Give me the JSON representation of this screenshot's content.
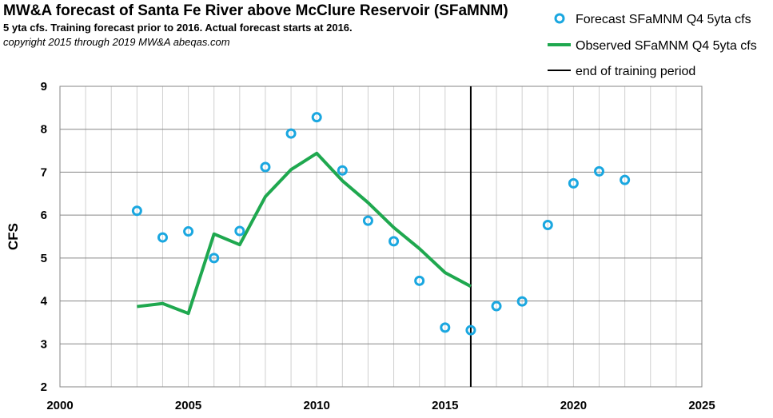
{
  "header": {
    "title": "MW&A forecast of Santa Fe River above McClure Reservoir (SFaMNM)",
    "subtitle": "5 yta cfs.  Training forecast prior to 2016.  Actual forecast starts at 2016.",
    "copyright": "copyright 2015 through 2019  MW&A  abeqas.com"
  },
  "chart_data": {
    "type": "line",
    "ylabel": "CFS",
    "xlabel": "",
    "xlim": [
      2000,
      2025
    ],
    "ylim": [
      2,
      9
    ],
    "x_ticks": [
      "2000",
      "2005",
      "2010",
      "2015",
      "2020",
      "2025"
    ],
    "y_ticks": [
      "2",
      "3",
      "4",
      "5",
      "6",
      "7",
      "8",
      "9"
    ],
    "grid": true,
    "legend_position": "top-right",
    "series": [
      {
        "name": "Forecast SFaMNM Q4 5yta cfs",
        "style": "markers",
        "color": "#1aa7e0",
        "x": [
          2003,
          2004,
          2005,
          2006,
          2007,
          2008,
          2009,
          2010,
          2011,
          2012,
          2013,
          2014,
          2015,
          2016,
          2017,
          2018,
          2019,
          2020,
          2021,
          2022
        ],
        "values": [
          6.1,
          5.48,
          5.62,
          5.0,
          5.63,
          7.12,
          7.9,
          8.28,
          7.04,
          5.87,
          5.39,
          4.47,
          3.38,
          3.32,
          3.88,
          3.99,
          5.77,
          6.74,
          7.02,
          6.82
        ]
      },
      {
        "name": "Observed SFaMNM Q4 5yta cfs",
        "style": "line",
        "color": "#1fa84f",
        "x": [
          2003,
          2004,
          2005,
          2006,
          2007,
          2008,
          2009,
          2010,
          2011,
          2012,
          2013,
          2014,
          2015,
          2016
        ],
        "values": [
          3.87,
          3.94,
          3.71,
          5.56,
          5.31,
          6.43,
          7.06,
          7.44,
          6.8,
          6.29,
          5.71,
          5.22,
          4.66,
          4.34
        ]
      }
    ],
    "vertical_line": {
      "name": "end of training period",
      "x": 2016,
      "color": "#000000"
    }
  }
}
